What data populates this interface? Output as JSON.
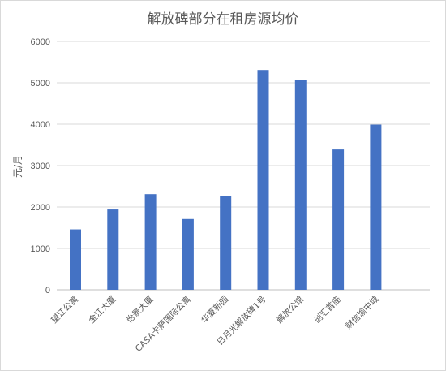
{
  "chart_data": {
    "type": "bar",
    "title": "解放碑部分在租房源均价",
    "xlabel": "",
    "ylabel": "元/月",
    "ylim": [
      0,
      6000
    ],
    "yticks": [
      0,
      1000,
      2000,
      3000,
      4000,
      5000,
      6000
    ],
    "grid": true,
    "legend": "none",
    "categories": [
      "望江公寓",
      "金江大厦",
      "怡景大厦",
      "CASA卡萨国际公寓",
      "华夏新园",
      "日月光解放碑1号",
      "解放公馆",
      "创汇首座",
      "财信渝中城"
    ],
    "values": [
      1460,
      1940,
      2310,
      1710,
      2270,
      5310,
      5070,
      3390,
      3990
    ],
    "bar_color": "#4472c4"
  }
}
